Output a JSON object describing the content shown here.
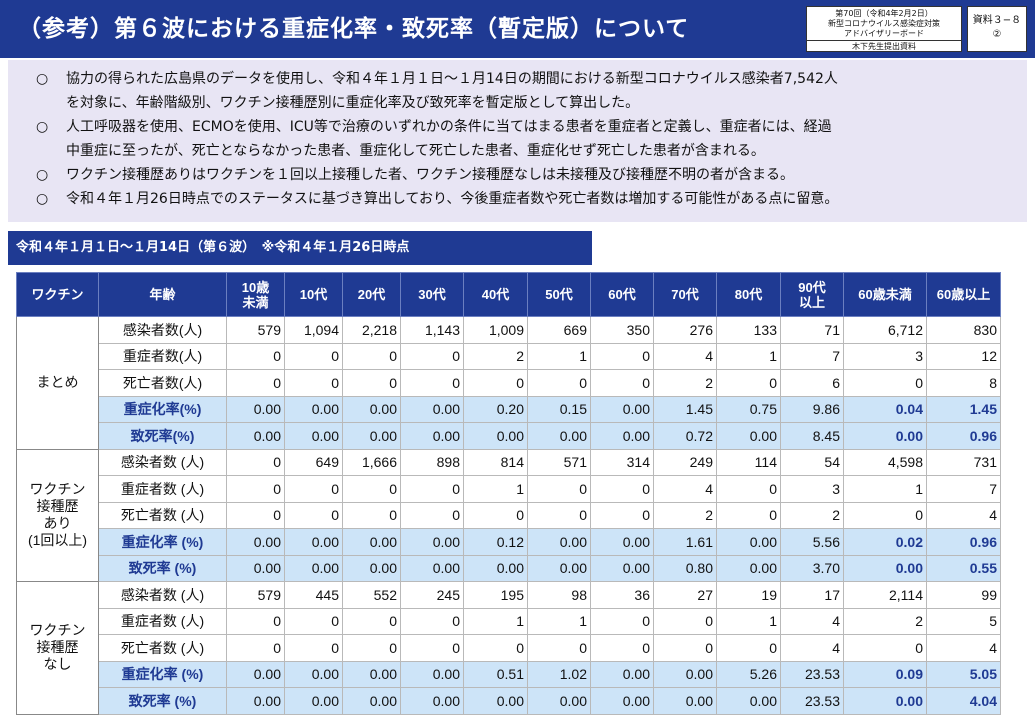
{
  "header": {
    "title": "（参考）第６波における重症化率・致死率（暫定版）について",
    "meta_line1": "第70回（令和4年2月2日）",
    "meta_line2": "新型コロナウイルス感染症対策",
    "meta_line3": "アドバイザリーボード",
    "meta_source": "木下先生提出資料",
    "doc_id": "資料３−８",
    "doc_num": "②"
  },
  "bullets": [
    {
      "mark": "○",
      "line1": "協力の得られた広島県のデータを使用し、令和４年１月１日～１月14日の期間における新型コロナウイルス感染者7,542人",
      "line2": "を対象に、年齢階級別、ワクチン接種歴別に重症化率及び致死率を暫定版として算出した。"
    },
    {
      "mark": "○",
      "line1": "人工呼吸器を使用、ECMOを使用、ICU等で治療のいずれかの条件に当てはまる患者を重症者と定義し、重症者には、経過",
      "line2": "中重症に至ったが、死亡とならなかった患者、重症化して死亡した患者、重症化せず死亡した患者が含まれる。"
    },
    {
      "mark": "○",
      "line1": "ワクチン接種歴ありはワクチンを１回以上接種した者、ワクチン接種歴なしは未接種及び接種歴不明の者が含まる。",
      "line2": ""
    },
    {
      "mark": "○",
      "line1": "令和４年１月26日時点でのステータスに基づき算出しており、今後重症者数や死亡者数は増加する可能性がある点に留意。",
      "line2": ""
    }
  ],
  "sub_header": "令和４年１月１日～１月14日（第６波）　※令和４年１月26日時点",
  "table": {
    "headers": [
      "ワクチン",
      "年齢",
      "10歳\n未満",
      "10代",
      "20代",
      "30代",
      "40代",
      "50代",
      "60代",
      "70代",
      "80代",
      "90代\n以上",
      "60歳未満",
      "60歳以上"
    ],
    "groups": [
      {
        "name": "まとめ",
        "rows": [
          {
            "label": "感染者数(人)",
            "rate": false,
            "values": [
              "579",
              "1,094",
              "2,218",
              "1,143",
              "1,009",
              "669",
              "350",
              "276",
              "133",
              "71",
              "6,712",
              "830"
            ]
          },
          {
            "label": "重症者数(人)",
            "rate": false,
            "values": [
              "0",
              "0",
              "0",
              "0",
              "2",
              "1",
              "0",
              "4",
              "1",
              "7",
              "3",
              "12"
            ]
          },
          {
            "label": "死亡者数(人)",
            "rate": false,
            "values": [
              "0",
              "0",
              "0",
              "0",
              "0",
              "0",
              "0",
              "2",
              "0",
              "6",
              "0",
              "8"
            ]
          },
          {
            "label": "重症化率(%)",
            "rate": true,
            "values": [
              "0.00",
              "0.00",
              "0.00",
              "0.00",
              "0.20",
              "0.15",
              "0.00",
              "1.45",
              "0.75",
              "9.86",
              "0.04",
              "1.45"
            ]
          },
          {
            "label": "致死率(%)",
            "rate": true,
            "values": [
              "0.00",
              "0.00",
              "0.00",
              "0.00",
              "0.00",
              "0.00",
              "0.00",
              "0.72",
              "0.00",
              "8.45",
              "0.00",
              "0.96"
            ]
          }
        ]
      },
      {
        "name": "ワクチン\n接種歴\nあり\n(1回以上)",
        "rows": [
          {
            "label": "感染者数 (人)",
            "rate": false,
            "values": [
              "0",
              "649",
              "1,666",
              "898",
              "814",
              "571",
              "314",
              "249",
              "114",
              "54",
              "4,598",
              "731"
            ]
          },
          {
            "label": "重症者数 (人)",
            "rate": false,
            "values": [
              "0",
              "0",
              "0",
              "0",
              "1",
              "0",
              "0",
              "4",
              "0",
              "3",
              "1",
              "7"
            ]
          },
          {
            "label": "死亡者数 (人)",
            "rate": false,
            "values": [
              "0",
              "0",
              "0",
              "0",
              "0",
              "0",
              "0",
              "2",
              "0",
              "2",
              "0",
              "4"
            ]
          },
          {
            "label": "重症化率 (%)",
            "rate": true,
            "values": [
              "0.00",
              "0.00",
              "0.00",
              "0.00",
              "0.12",
              "0.00",
              "0.00",
              "1.61",
              "0.00",
              "5.56",
              "0.02",
              "0.96"
            ]
          },
          {
            "label": "致死率 (%)",
            "rate": true,
            "values": [
              "0.00",
              "0.00",
              "0.00",
              "0.00",
              "0.00",
              "0.00",
              "0.00",
              "0.80",
              "0.00",
              "3.70",
              "0.00",
              "0.55"
            ]
          }
        ]
      },
      {
        "name": "ワクチン\n接種歴\nなし",
        "rows": [
          {
            "label": "感染者数 (人)",
            "rate": false,
            "values": [
              "579",
              "445",
              "552",
              "245",
              "195",
              "98",
              "36",
              "27",
              "19",
              "17",
              "2,114",
              "99"
            ]
          },
          {
            "label": "重症者数 (人)",
            "rate": false,
            "values": [
              "0",
              "0",
              "0",
              "0",
              "1",
              "1",
              "0",
              "0",
              "1",
              "4",
              "2",
              "5"
            ]
          },
          {
            "label": "死亡者数 (人)",
            "rate": false,
            "values": [
              "0",
              "0",
              "0",
              "0",
              "0",
              "0",
              "0",
              "0",
              "0",
              "4",
              "0",
              "4"
            ]
          },
          {
            "label": "重症化率 (%)",
            "rate": true,
            "values": [
              "0.00",
              "0.00",
              "0.00",
              "0.00",
              "0.51",
              "1.02",
              "0.00",
              "0.00",
              "5.26",
              "23.53",
              "0.09",
              "5.05"
            ]
          },
          {
            "label": "致死率 (%)",
            "rate": true,
            "values": [
              "0.00",
              "0.00",
              "0.00",
              "0.00",
              "0.00",
              "0.00",
              "0.00",
              "0.00",
              "0.00",
              "23.53",
              "0.00",
              "4.04"
            ]
          }
        ]
      }
    ]
  }
}
